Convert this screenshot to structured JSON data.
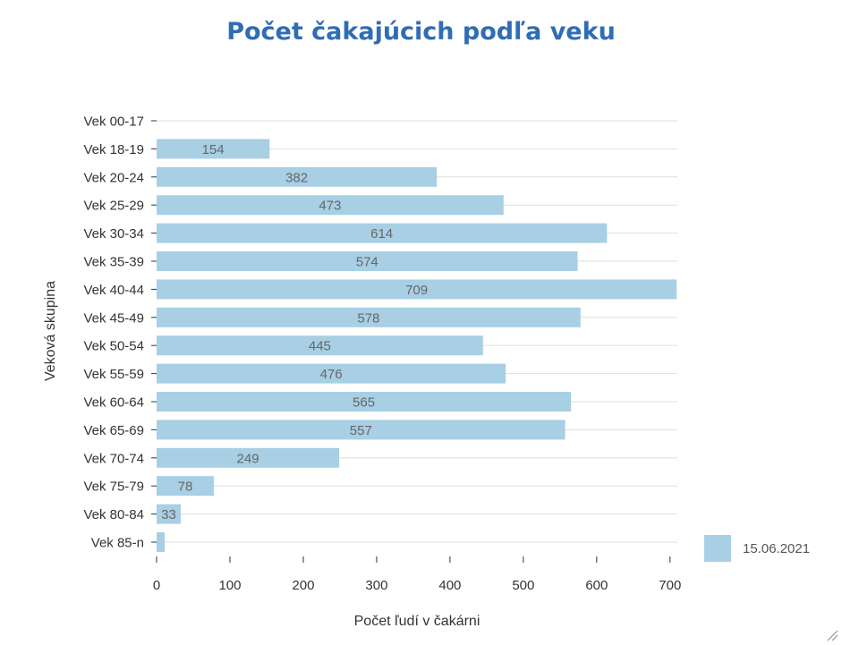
{
  "chart_data": {
    "type": "bar",
    "orientation": "horizontal",
    "title": "Počet čakajúcich podľa veku",
    "xlabel": "Počet ľudí v čakárni",
    "ylabel": "Veková skupina",
    "categories": [
      "Vek 00-17",
      "Vek 18-19",
      "Vek 20-24",
      "Vek 25-29",
      "Vek 30-34",
      "Vek 35-39",
      "Vek 40-44",
      "Vek 45-49",
      "Vek 50-54",
      "Vek 55-59",
      "Vek 60-64",
      "Vek 65-69",
      "Vek 70-74",
      "Vek 75-79",
      "Vek 80-84",
      "Vek 85-n"
    ],
    "series": [
      {
        "name": "15.06.2021",
        "values": [
          0,
          154,
          382,
          473,
          614,
          574,
          709,
          578,
          445,
          476,
          565,
          557,
          249,
          78,
          33,
          11
        ],
        "data_labels": [
          "",
          "154",
          "382",
          "473",
          "614",
          "574",
          "709",
          "578",
          "445",
          "476",
          "565",
          "557",
          "249",
          "78",
          "33",
          ""
        ],
        "color": "#a8cfe3"
      }
    ],
    "xlim": [
      0,
      710
    ],
    "xticks": [
      "0",
      "100",
      "200",
      "300",
      "400",
      "500",
      "600",
      "700"
    ],
    "grid": true,
    "legend_position": "bottom-right"
  }
}
